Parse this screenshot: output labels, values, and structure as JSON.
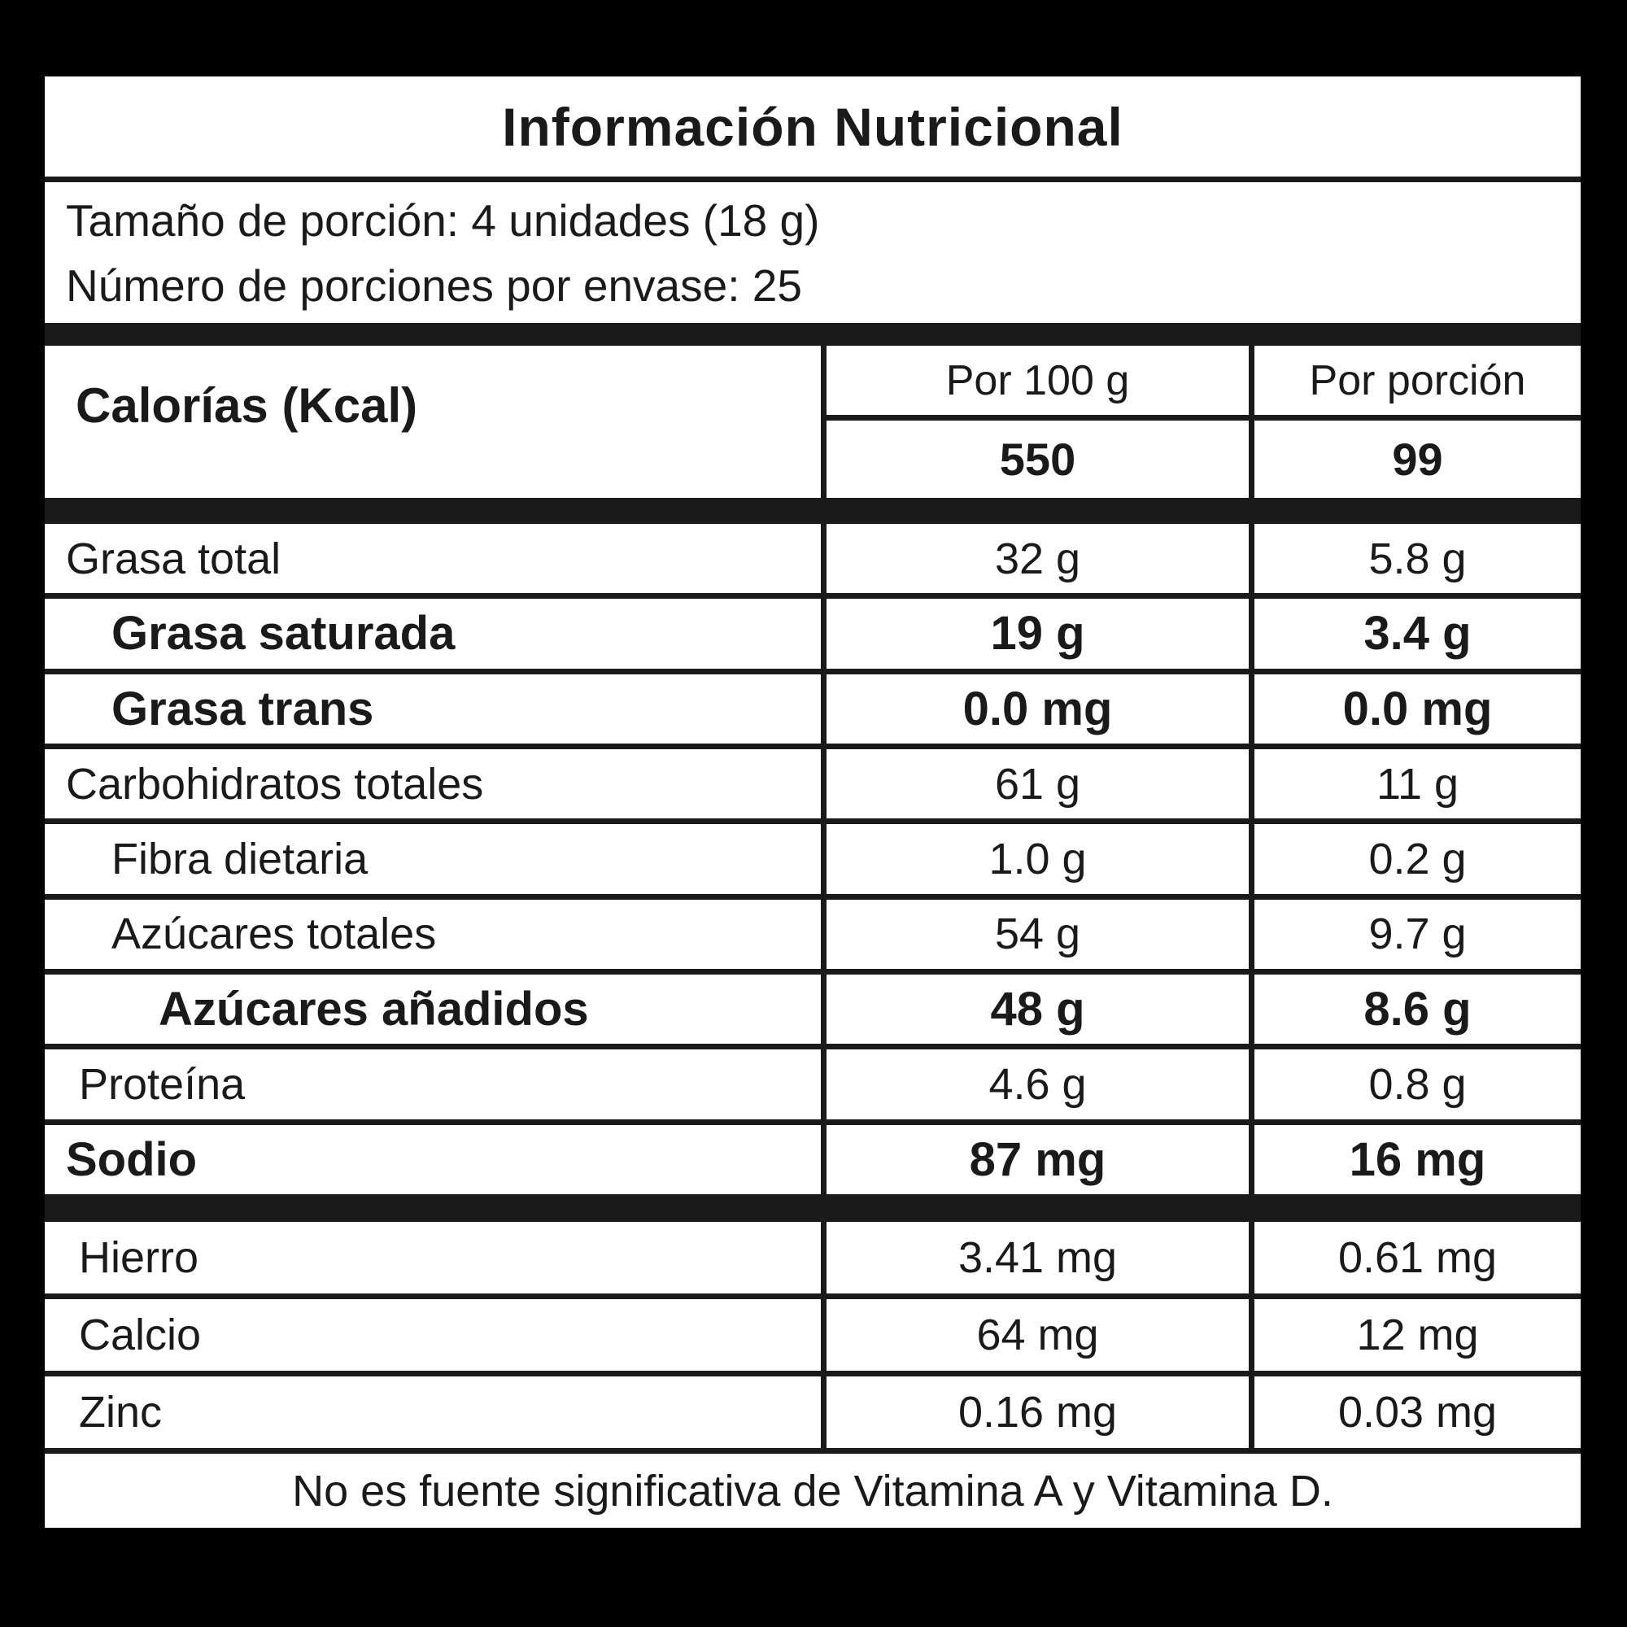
{
  "nutrition": {
    "title": "Información Nutricional",
    "serving": {
      "size_line": "Tamaño de porción: 4 unidades (18 g)",
      "count_line": "Número de porciones por envase: 25"
    },
    "calories": {
      "name": "Calorías (Kcal)",
      "headers": {
        "per100": "Por 100 g",
        "portion": "Por porción"
      },
      "values": {
        "per100": "550",
        "portion": "99"
      }
    },
    "rows": [
      {
        "label": "Grasa total",
        "per100": "32 g",
        "portion": "5.8 g"
      },
      {
        "label": "Grasa saturada",
        "per100": "19 g",
        "portion": "3.4 g"
      },
      {
        "label": "Grasa trans",
        "per100": "0.0 mg",
        "portion": "0.0 mg"
      },
      {
        "label": "Carbohidratos totales",
        "per100": "61 g",
        "portion": "11 g"
      },
      {
        "label": "Fibra dietaria",
        "per100": "1.0 g",
        "portion": "0.2 g"
      },
      {
        "label": "Azúcares totales",
        "per100": "54 g",
        "portion": "9.7 g"
      },
      {
        "label": "Azúcares añadidos",
        "per100": "48 g",
        "portion": "8.6 g"
      },
      {
        "label": "Proteína",
        "per100": "4.6 g",
        "portion": "0.8 g"
      },
      {
        "label": "Sodio",
        "per100": "87 mg",
        "portion": "16 mg"
      }
    ],
    "minerals": [
      {
        "label": "Hierro",
        "per100": "3.41 mg",
        "portion": "0.61 mg"
      },
      {
        "label": "Calcio",
        "per100": "64 mg",
        "portion": "12 mg"
      },
      {
        "label": "Zinc",
        "per100": "0.16 mg",
        "portion": "0.03 mg"
      }
    ],
    "footnote": "No es fuente significativa de Vitamina A y Vitamina D.",
    "colors": {
      "background": "#000000",
      "panel": "#ffffff",
      "text": "#1a1a1a",
      "lines": "#1a1a1a"
    }
  }
}
